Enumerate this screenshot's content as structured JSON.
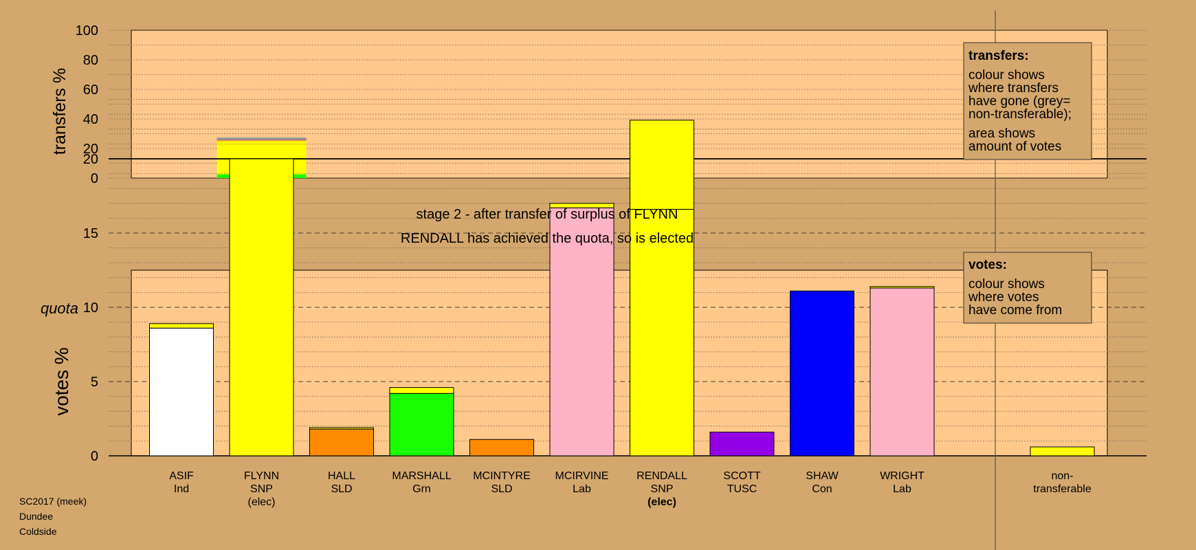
{
  "colors": {
    "page_bg": "#d4a76f",
    "plot_bg": "#ffc98c",
    "legend_bg": "#d4a76f",
    "Ind": "#ffffff",
    "SNP": "#ffff00",
    "SLD": "#ff8c00",
    "Grn": "#1aff00",
    "TUSC": "#9400e6",
    "Con": "#0000ff",
    "Lab": "#ffb3c6",
    "nontransferable": "#a0a0a0"
  },
  "top_chart": {
    "ylabel": "transfers %",
    "yticks": [
      0,
      20,
      40,
      60,
      80,
      100
    ],
    "legend": {
      "title": "transfers:",
      "lines_a": [
        "colour shows",
        "where transfers",
        "have gone (grey=",
        "non-transferable);"
      ],
      "lines_b": [
        "area shows",
        "amount of votes"
      ]
    }
  },
  "stage_text": {
    "line1": "stage 2 - after transfer of surplus of FLYNN",
    "line2": "RENDALL has achieved the quota, so is elected"
  },
  "bottom_chart": {
    "ylabel": "votes %",
    "quota_label": "quota",
    "yticks": [
      0,
      5,
      10,
      15,
      20
    ],
    "legend": {
      "title": "votes:",
      "lines": [
        "colour shows",
        "where votes",
        "have come from"
      ]
    }
  },
  "chart_data": [
    {
      "type": "bar",
      "title": "",
      "ylabel": "transfers %",
      "ylim": [
        0,
        100
      ],
      "grid": true,
      "legend_position": "top-right",
      "bars": [
        {
          "slot": 1,
          "candidate": "FLYNN",
          "segments": [
            {
              "to": "Grn",
              "value": 2.5
            },
            {
              "to": "SNP",
              "value": 22.5
            },
            {
              "to": "SLD",
              "value": 0.5
            },
            {
              "to": "Lab",
              "value": 0.5
            },
            {
              "to": "nontransferable",
              "value": 1.5
            }
          ]
        }
      ]
    },
    {
      "type": "bar",
      "title": "",
      "ylabel": "votes %",
      "ylim": [
        0,
        24
      ],
      "quota": 20,
      "grid": true,
      "legend_position": "top-right",
      "bars": [
        {
          "slot": 0,
          "name": "ASIF",
          "party": "Ind",
          "note": "",
          "segments": [
            {
              "party": "Ind",
              "value": 8.6
            },
            {
              "party": "SNP",
              "value": 0.3
            }
          ]
        },
        {
          "slot": 1,
          "name": "FLYNN",
          "party": "SNP",
          "note": "(elec)",
          "segments": [
            {
              "party": "SNP",
              "value": 20.0
            }
          ]
        },
        {
          "slot": 2,
          "name": "HALL",
          "party": "SLD",
          "note": "",
          "segments": [
            {
              "party": "SLD",
              "value": 1.8
            },
            {
              "party": "SNP",
              "value": 0.1
            }
          ]
        },
        {
          "slot": 3,
          "name": "MARSHALL",
          "party": "Grn",
          "note": "",
          "segments": [
            {
              "party": "Grn",
              "value": 4.2
            },
            {
              "party": "SNP",
              "value": 0.4
            }
          ]
        },
        {
          "slot": 4,
          "name": "MCINTYRE",
          "party": "SLD",
          "note": "",
          "segments": [
            {
              "party": "SLD",
              "value": 1.1
            }
          ]
        },
        {
          "slot": 5,
          "name": "MCIRVINE",
          "party": "Lab",
          "note": "",
          "segments": [
            {
              "party": "Lab",
              "value": 16.7
            },
            {
              "party": "SNP",
              "value": 0.3
            }
          ]
        },
        {
          "slot": 6,
          "name": "RENDALL",
          "party": "SNP",
          "note": "(elec)",
          "segments": [
            {
              "party": "SNP",
              "value": 16.6
            },
            {
              "party": "SNP",
              "value": 6.0
            }
          ]
        },
        {
          "slot": 7,
          "name": "SCOTT",
          "party": "TUSC",
          "note": "",
          "segments": [
            {
              "party": "TUSC",
              "value": 1.6
            }
          ]
        },
        {
          "slot": 8,
          "name": "SHAW",
          "party": "Con",
          "note": "",
          "segments": [
            {
              "party": "Con",
              "value": 11.1
            }
          ]
        },
        {
          "slot": 9,
          "name": "WRIGHT",
          "party": "Lab",
          "note": "",
          "segments": [
            {
              "party": "Lab",
              "value": 11.3
            },
            {
              "party": "SNP",
              "value": 0.1
            }
          ]
        },
        {
          "slot": 11,
          "name": "non-",
          "party": "transferable",
          "note": "",
          "segments": [
            {
              "party": "SNP",
              "value": 0.6
            }
          ]
        }
      ]
    }
  ],
  "footer": {
    "line1": "SC2017 (meek)",
    "line2": "Dundee",
    "line3": "Coldside"
  }
}
